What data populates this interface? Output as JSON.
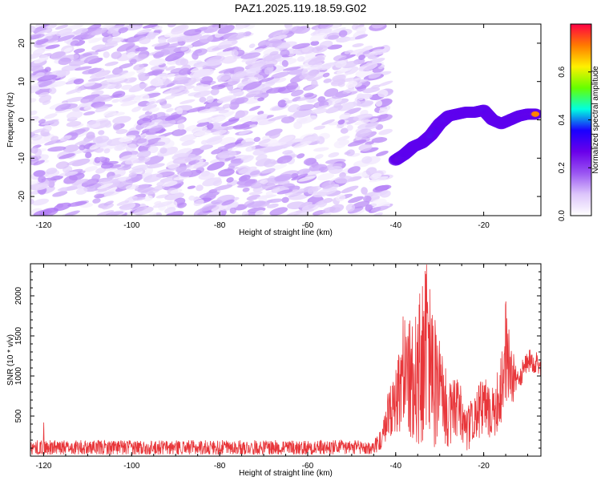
{
  "title": "PAZ1.2025.119.18.59.G02",
  "chart_data": [
    {
      "type": "heatmap",
      "xlabel": "Height of straight line (km)",
      "ylabel": "Frequency (Hz)",
      "xlim": [
        -123,
        -7
      ],
      "ylim": [
        -25,
        25
      ],
      "xticks": [
        -120,
        -100,
        -80,
        -60,
        -40,
        -20
      ],
      "yticks": [
        -20,
        -10,
        0,
        10,
        20
      ],
      "colorbar": {
        "label": "Normalized spectral amplitude",
        "range": [
          0,
          0.8
        ],
        "ticks": [
          0.0,
          0.2,
          0.4,
          0.6
        ],
        "colormap": [
          "#ffffff",
          "#ddc6fb",
          "#9a55f2",
          "#6a00ea",
          "#1a00ff",
          "#00ffe0",
          "#66ff00",
          "#fff000",
          "#ff7a00",
          "#ff0044"
        ]
      },
      "ridge": {
        "x": [
          -40,
          -38,
          -36,
          -34,
          -32,
          -30,
          -28,
          -26,
          -24,
          -22,
          -20,
          -18,
          -16,
          -14,
          -12,
          -10,
          -8
        ],
        "y": [
          -10.5,
          -9,
          -7,
          -6,
          -4,
          -1,
          1,
          1.5,
          2,
          2,
          2.5,
          0,
          -1,
          0,
          1,
          1.5,
          1.5
        ],
        "amplitude": [
          0.78,
          0.35,
          0.3,
          0.3,
          0.4,
          0.35,
          0.45,
          0.4,
          0.35,
          0.3,
          0.4,
          0.25,
          0.3,
          0.35,
          0.45,
          0.6,
          0.72
        ]
      },
      "noise_region": {
        "xmin": -123,
        "xmax": -44,
        "amplitude_range": [
          0.02,
          0.15
        ]
      }
    },
    {
      "type": "line",
      "xlabel": "Height of straight line (km)",
      "ylabel": "SNR (10 * v/v)",
      "xlim": [
        -123,
        -7
      ],
      "ylim": [
        0,
        2400
      ],
      "xticks": [
        -120,
        -100,
        -80,
        -60,
        -40,
        -20
      ],
      "yticks": [
        500,
        1000,
        1500,
        2000
      ],
      "line_color": "#e8363a",
      "envelope": {
        "x": [
          -123,
          -45,
          -43,
          -42,
          -40,
          -38,
          -36,
          -34,
          -33,
          -32,
          -30,
          -28,
          -26,
          -24,
          -22,
          -20,
          -18,
          -16,
          -15,
          -14,
          -12,
          -10,
          -8,
          -7
        ],
        "y_max": [
          200,
          200,
          350,
          800,
          1100,
          1900,
          1600,
          2200,
          2400,
          2000,
          1500,
          900,
          1050,
          600,
          800,
          1000,
          850,
          1400,
          1930,
          1500,
          1100,
          1350,
          1300,
          1250
        ],
        "y_min": [
          20,
          20,
          100,
          200,
          300,
          150,
          200,
          100,
          300,
          50,
          200,
          100,
          250,
          50,
          150,
          300,
          200,
          400,
          700,
          600,
          800,
          1000,
          1050,
          1000
        ]
      },
      "spikes": [
        {
          "x": -120,
          "y": 420
        },
        {
          "x": -33,
          "y": 2390
        },
        {
          "x": -15,
          "y": 1930
        }
      ]
    }
  ]
}
